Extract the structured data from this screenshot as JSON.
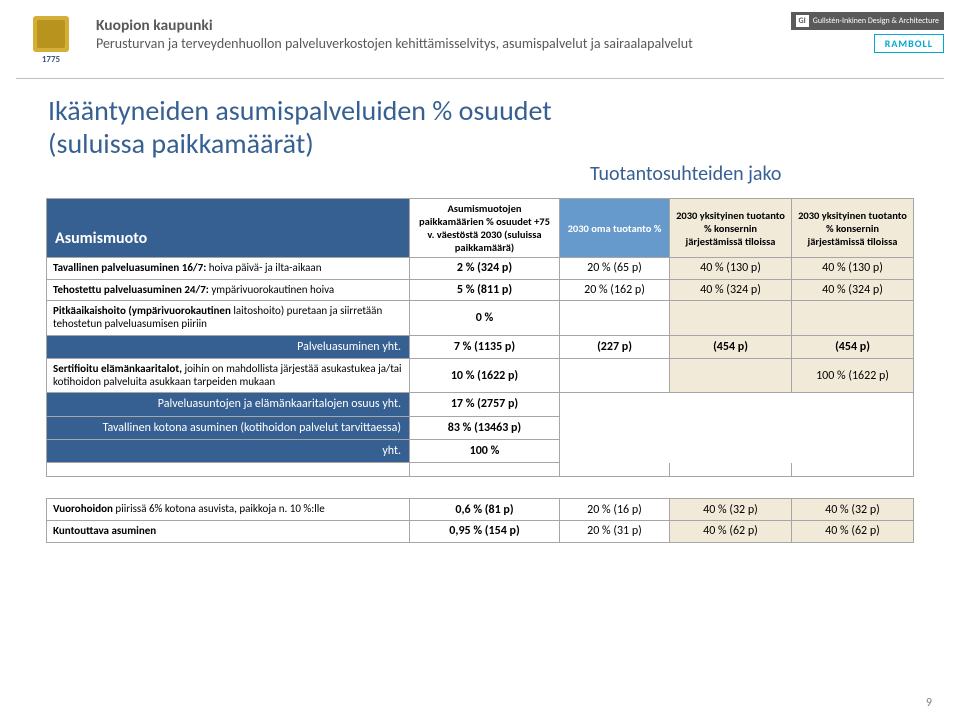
{
  "header": {
    "org": "Kuopion kaupunki",
    "sub": "Perusturvan ja terveydenhuollon palveluverkostojen kehittämisselvitys, asumispalvelut ja sairaalapalvelut",
    "logo_year": "1775",
    "logo_gi": "Gullstén-Inkinen Design & Architecture",
    "logo_gi_mark": "GI",
    "logo_ramboll": "RAMBOLL"
  },
  "title": {
    "line1": "Ikääntyneiden asumispalveluiden % osuudet",
    "line2": "(suluissa paikkamäärät)"
  },
  "ratio_label": "Tuotantosuhteiden jako",
  "table": {
    "headers": {
      "asum": "Asumismuoto",
      "paik": "Asumismuotojen paikkamäärien % osuudet +75 v. väestöstä 2030 (suluissa paikkamäärä)",
      "oma": "2030 oma tuotanto %",
      "yks1": "2030 yksityinen tuotanto % konsernin järjestämissä tiloissa",
      "yks2": "2030 yksityinen tuotanto % konsernin järjestämissä tiloissa"
    },
    "rows": [
      {
        "label": "Tavallinen palveluasuminen 16/7: hoiva päivä- ja ilta-aikaan",
        "paik": "2 %  (324 p)",
        "oma": "20 % (65 p)",
        "yks1": "40 % (130 p)",
        "yks2": "40 % (130 p)"
      },
      {
        "label": "Tehostettu palveluasuminen 24/7: ympärivuorokautinen hoiva",
        "paik": "5 %  (811 p)",
        "oma": "20 % (162 p)",
        "yks1": "40 % (324 p)",
        "yks2": "40 % (324 p)"
      },
      {
        "label": "Pitkäaikaishoito (ympärivuorokautinen laitoshoito) puretaan ja siirretään tehostetun palveluasumisen piiriin",
        "paik": "0 %",
        "oma": "",
        "yks1": "",
        "yks2": ""
      },
      {
        "label": "Palveluasuminen yht.",
        "paik": "7 % (1135 p)",
        "oma": "(227 p)",
        "yks1": "(454 p)",
        "yks2": "(454 p)",
        "summary": true
      },
      {
        "label": "Sertifioitu elämänkaaritalot, joihin on mahdollista järjestää asukastukea ja/tai  kotihoidon palveluita asukkaan tarpeiden mukaan",
        "paik": "10 % (1622 p)",
        "oma": "",
        "yks1": "",
        "yks2": "100 % (1622 p)"
      },
      {
        "label": "Palveluasuntojen ja elämänkaaritalojen osuus yht.",
        "paik": "17 % (2757 p)",
        "oma": "",
        "yks1": "",
        "yks2": "",
        "blue": true,
        "nofill": true
      },
      {
        "label": "Tavallinen kotona asuminen  (kotihoidon palvelut tarvittaessa)",
        "paik": "83 % (13463 p)",
        "oma": "",
        "yks1": "",
        "yks2": "",
        "blue": true,
        "nofill": true
      },
      {
        "label": "yht.",
        "paik": "100 %",
        "oma": "",
        "yks1": "",
        "yks2": "",
        "blue": true,
        "nofill": true
      }
    ],
    "bottom_rows": [
      {
        "label": "Vuorohoidon piirissä 6% kotona asuvista,  paikkoja n. 10 %:lle",
        "paik": "0,6 % (81 p)",
        "oma": "20 % (16 p)",
        "yks1": "40 % (32 p)",
        "yks2": "40 % (32 p)"
      },
      {
        "label": "Kuntouttava asuminen",
        "paik": "0,95 % (154 p)",
        "oma": "20 % (31 p)",
        "yks1": "40 % (62 p)",
        "yks2": "40 % (62 p)"
      }
    ]
  },
  "page_num": "9",
  "colors": {
    "title": "#376092",
    "header_txt": "#595959",
    "blue_cell": "#376092",
    "lightblue_cell": "#6699cc",
    "beige_cell": "#f2ead8",
    "border": "#a6a6a6"
  }
}
